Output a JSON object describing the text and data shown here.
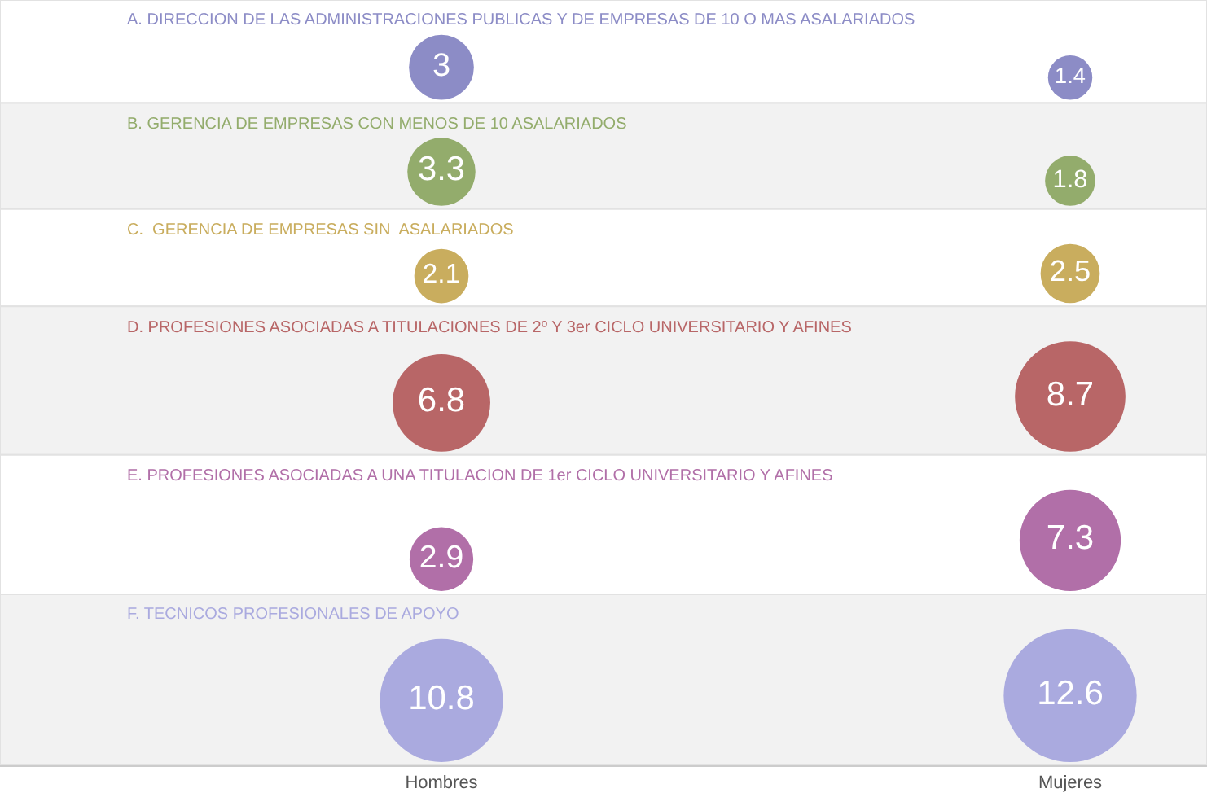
{
  "chart_data": {
    "type": "other",
    "categories": [
      "Hombres",
      "Mujeres"
    ],
    "series": [
      {
        "name": "A. DIRECCION DE LAS ADMINISTRACIONES PUBLICAS Y DE EMPRESAS DE 10 O MAS ASALARIADOS",
        "color": "#8c8cc6",
        "values": [
          3,
          1.4
        ]
      },
      {
        "name": "B. GERENCIA DE EMPRESAS CON MENOS DE 10 ASALARIADOS",
        "color": "#93ac6c",
        "values": [
          3.3,
          1.8
        ]
      },
      {
        "name": "C.  GERENCIA DE EMPRESAS SIN  ASALARIADOS",
        "color": "#c9ad5e",
        "values": [
          2.1,
          2.5
        ]
      },
      {
        "name": "D. PROFESIONES ASOCIADAS A TITULACIONES DE 2º Y 3er CICLO UNIVERSITARIO Y AFINES",
        "color": "#b86667",
        "values": [
          6.8,
          8.7
        ]
      },
      {
        "name": "E. PROFESIONES ASOCIADAS A UNA TITULACION DE 1er CICLO UNIVERSITARIO Y AFINES",
        "color": "#b16fa8",
        "values": [
          2.9,
          7.3
        ]
      },
      {
        "name": "F. TECNICOS PROFESIONALES DE APOYO",
        "color": "#aaaadf",
        "values": [
          10.8,
          12.6
        ]
      }
    ],
    "data_labels": true
  }
}
